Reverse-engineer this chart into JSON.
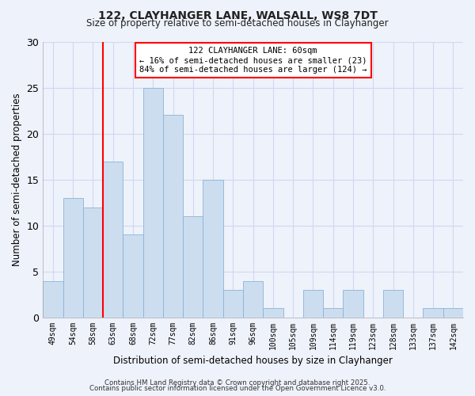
{
  "title1": "122, CLAYHANGER LANE, WALSALL, WS8 7DT",
  "title2": "Size of property relative to semi-detached houses in Clayhanger",
  "xlabel": "Distribution of semi-detached houses by size in Clayhanger",
  "ylabel": "Number of semi-detached properties",
  "bar_labels": [
    "49sqm",
    "54sqm",
    "58sqm",
    "63sqm",
    "68sqm",
    "72sqm",
    "77sqm",
    "82sqm",
    "86sqm",
    "91sqm",
    "96sqm",
    "100sqm",
    "105sqm",
    "109sqm",
    "114sqm",
    "119sqm",
    "123sqm",
    "128sqm",
    "133sqm",
    "137sqm",
    "142sqm"
  ],
  "bar_values": [
    4,
    13,
    12,
    17,
    9,
    25,
    22,
    11,
    15,
    3,
    4,
    1,
    0,
    3,
    1,
    3,
    0,
    3,
    0,
    1,
    1
  ],
  "bar_color": "#ccddf0",
  "bar_edge_color": "#8ab4d4",
  "vline_color": "red",
  "vline_pos": 2.5,
  "annotation_title": "122 CLAYHANGER LANE: 60sqm",
  "annotation_line1": "← 16% of semi-detached houses are smaller (23)",
  "annotation_line2": "84% of semi-detached houses are larger (124) →",
  "ylim": [
    0,
    30
  ],
  "yticks": [
    0,
    5,
    10,
    15,
    20,
    25,
    30
  ],
  "bg_color": "#eef2fb",
  "plot_bg_color": "#eef2fb",
  "grid_color": "#d0d8f0",
  "footer1": "Contains HM Land Registry data © Crown copyright and database right 2025.",
  "footer2": "Contains public sector information licensed under the Open Government Licence v3.0."
}
